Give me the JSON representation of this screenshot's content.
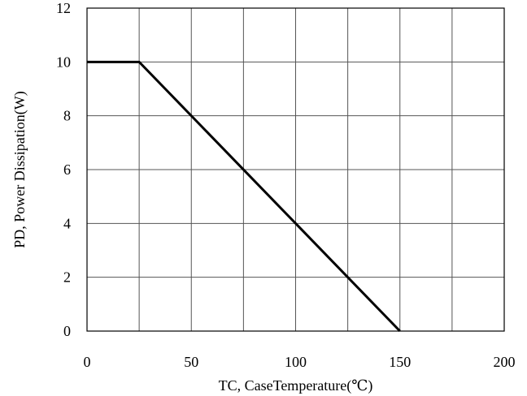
{
  "chart_data": {
    "type": "line",
    "title": "",
    "xlabel": "TC, CaseTemperature(℃)",
    "ylabel": "PD, Power Dissipation(W)",
    "xlim": [
      0,
      200
    ],
    "ylim": [
      0,
      12
    ],
    "x_ticks": [
      0,
      50,
      100,
      150,
      200
    ],
    "y_ticks": [
      0,
      2,
      4,
      6,
      8,
      10,
      12
    ],
    "x_grid": [
      25,
      50,
      75,
      100,
      125,
      150,
      175
    ],
    "y_grid": [
      2,
      4,
      6,
      8,
      10
    ],
    "grid": true,
    "series": [
      {
        "x": [
          0,
          25,
          150
        ],
        "y": [
          10,
          10,
          0
        ]
      }
    ]
  }
}
